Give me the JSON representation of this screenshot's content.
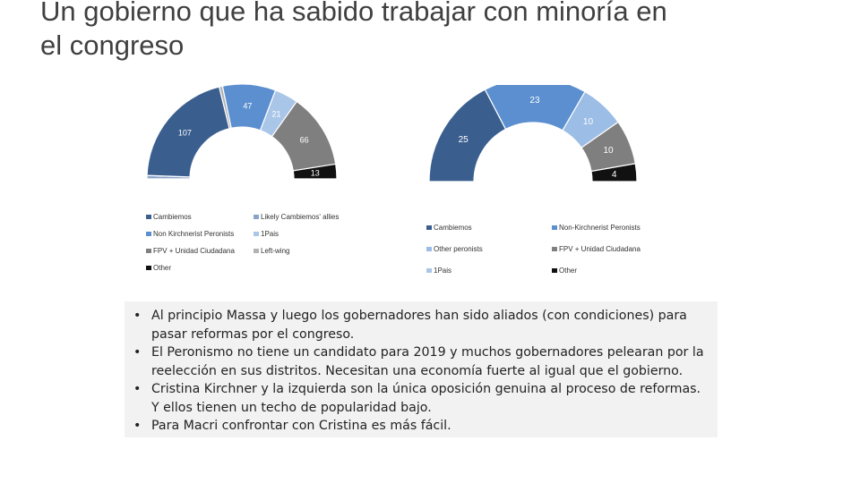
{
  "slide": {
    "title": "Un gobierno que ha sabido trabajar con minoría en el congreso"
  },
  "colors": {
    "Cambiemos": "#3a5f8f",
    "Likely Cambiemos allies": "#8aa4c8",
    "Non Kirchnerist Peronists": "#5b8fd0",
    "1Pais": "#a9c6e8",
    "FPV + Unidad Ciudadana": "#7f7f7f",
    "Left-wing": "#b3b3b3",
    "Other": "#111111",
    "Other peronists": "#9cbde6"
  },
  "chart_data": [
    {
      "type": "pie",
      "variant": "half-donut",
      "series": [
        {
          "name": "Likely Cambiemos allies",
          "value": 3,
          "label": ""
        },
        {
          "name": "Cambiemos",
          "value": 107,
          "label": "107"
        },
        {
          "name": "Left-wing",
          "value": 3,
          "label": ""
        },
        {
          "name": "Non Kirchnerist Peronists",
          "value": 47,
          "label": "47"
        },
        {
          "name": "1Pais",
          "value": 21,
          "label": "21"
        },
        {
          "name": "FPV + Unidad Ciudadana",
          "value": 66,
          "label": "66"
        },
        {
          "name": "Other",
          "value": 13,
          "label": "13"
        }
      ],
      "legend": [
        {
          "name": "Cambiemos",
          "text": "Cambiemos"
        },
        {
          "name": "Likely Cambiemos allies",
          "text": "Likely Cambiemos' allies"
        },
        {
          "name": "Non Kirchnerist Peronists",
          "text": "Non Kirchnerist Peronists"
        },
        {
          "name": "1Pais",
          "text": "1Pais"
        },
        {
          "name": "FPV + Unidad Ciudadana",
          "text": "FPV + Unidad Ciudadana"
        },
        {
          "name": "Left-wing",
          "text": "Left-wing"
        },
        {
          "name": "Other",
          "text": "Other"
        }
      ]
    },
    {
      "type": "pie",
      "variant": "half-donut",
      "series": [
        {
          "name": "Cambiemos",
          "value": 25,
          "label": "25"
        },
        {
          "name": "Non Kirchnerist Peronists",
          "value": 23,
          "label": "23"
        },
        {
          "name": "Other peronists",
          "value": 10,
          "label": "10"
        },
        {
          "name": "FPV + Unidad Ciudadana",
          "value": 10,
          "label": "10"
        },
        {
          "name": "Other",
          "value": 4,
          "label": "4"
        }
      ],
      "legend": [
        {
          "name": "Cambiemos",
          "text": "Cambiemos"
        },
        {
          "name": "Non Kirchnerist Peronists",
          "text": "Non-Kirchnerist Peronists"
        },
        {
          "name": "Other peronists",
          "text": "Other peronists"
        },
        {
          "name": "FPV + Unidad Ciudadana",
          "text": "FPV + Unidad Ciudadana"
        },
        {
          "name": "1Pais",
          "text": "1Pais"
        },
        {
          "name": "Other",
          "text": "Other"
        }
      ]
    }
  ],
  "bullets": [
    "Al principio Massa y luego los gobernadores han sido aliados (con condiciones) para pasar reformas por el congreso.",
    "El Peronismo no tiene un candidato para 2019 y muchos gobernadores pelearan por la reelección en sus distritos. Necesitan una economía fuerte al igual que el gobierno.",
    "Cristina Kirchner y la izquierda son la única oposición genuina al proceso de reformas. Y ellos tienen un techo de popularidad bajo.",
    "Para Macri confrontar con Cristina es más fácil."
  ],
  "bullet_symbol": "•"
}
